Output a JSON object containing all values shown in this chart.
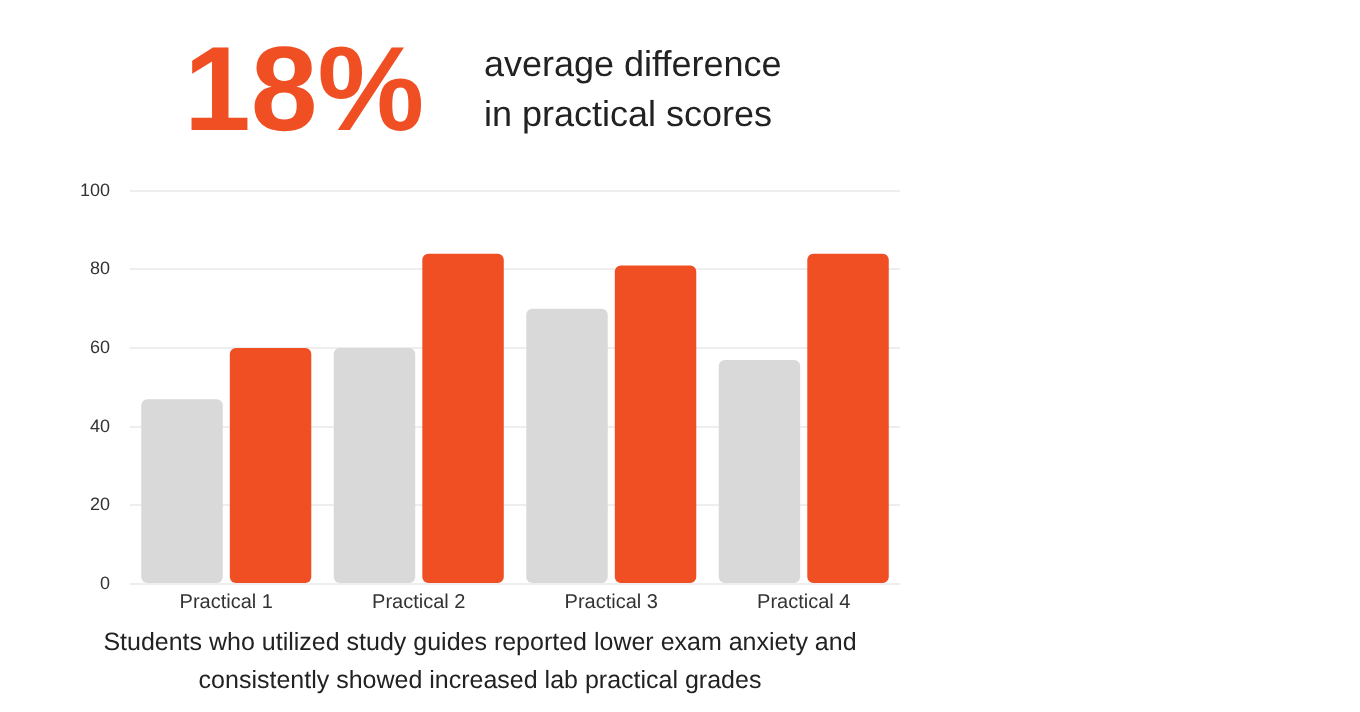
{
  "chart_data": {
    "type": "bar",
    "title": "18%",
    "subtitle": "average difference\nin practical scores",
    "categories": [
      "Practical 1",
      "Practical 2",
      "Practical 3",
      "Practical 4"
    ],
    "series": [
      {
        "color": "#d9d9d9",
        "values": [
          47,
          60,
          70,
          57
        ]
      },
      {
        "color": "#f04e23",
        "values": [
          60,
          84,
          81,
          84
        ]
      }
    ],
    "ylim": [
      0,
      100
    ],
    "yticks": [
      0,
      20,
      40,
      60,
      80,
      100
    ],
    "grid": "y",
    "legend": false,
    "annotations": [
      "Students who utilized study guides reported lower exam anxiety and consistently showed increased lab practical grades"
    ]
  }
}
